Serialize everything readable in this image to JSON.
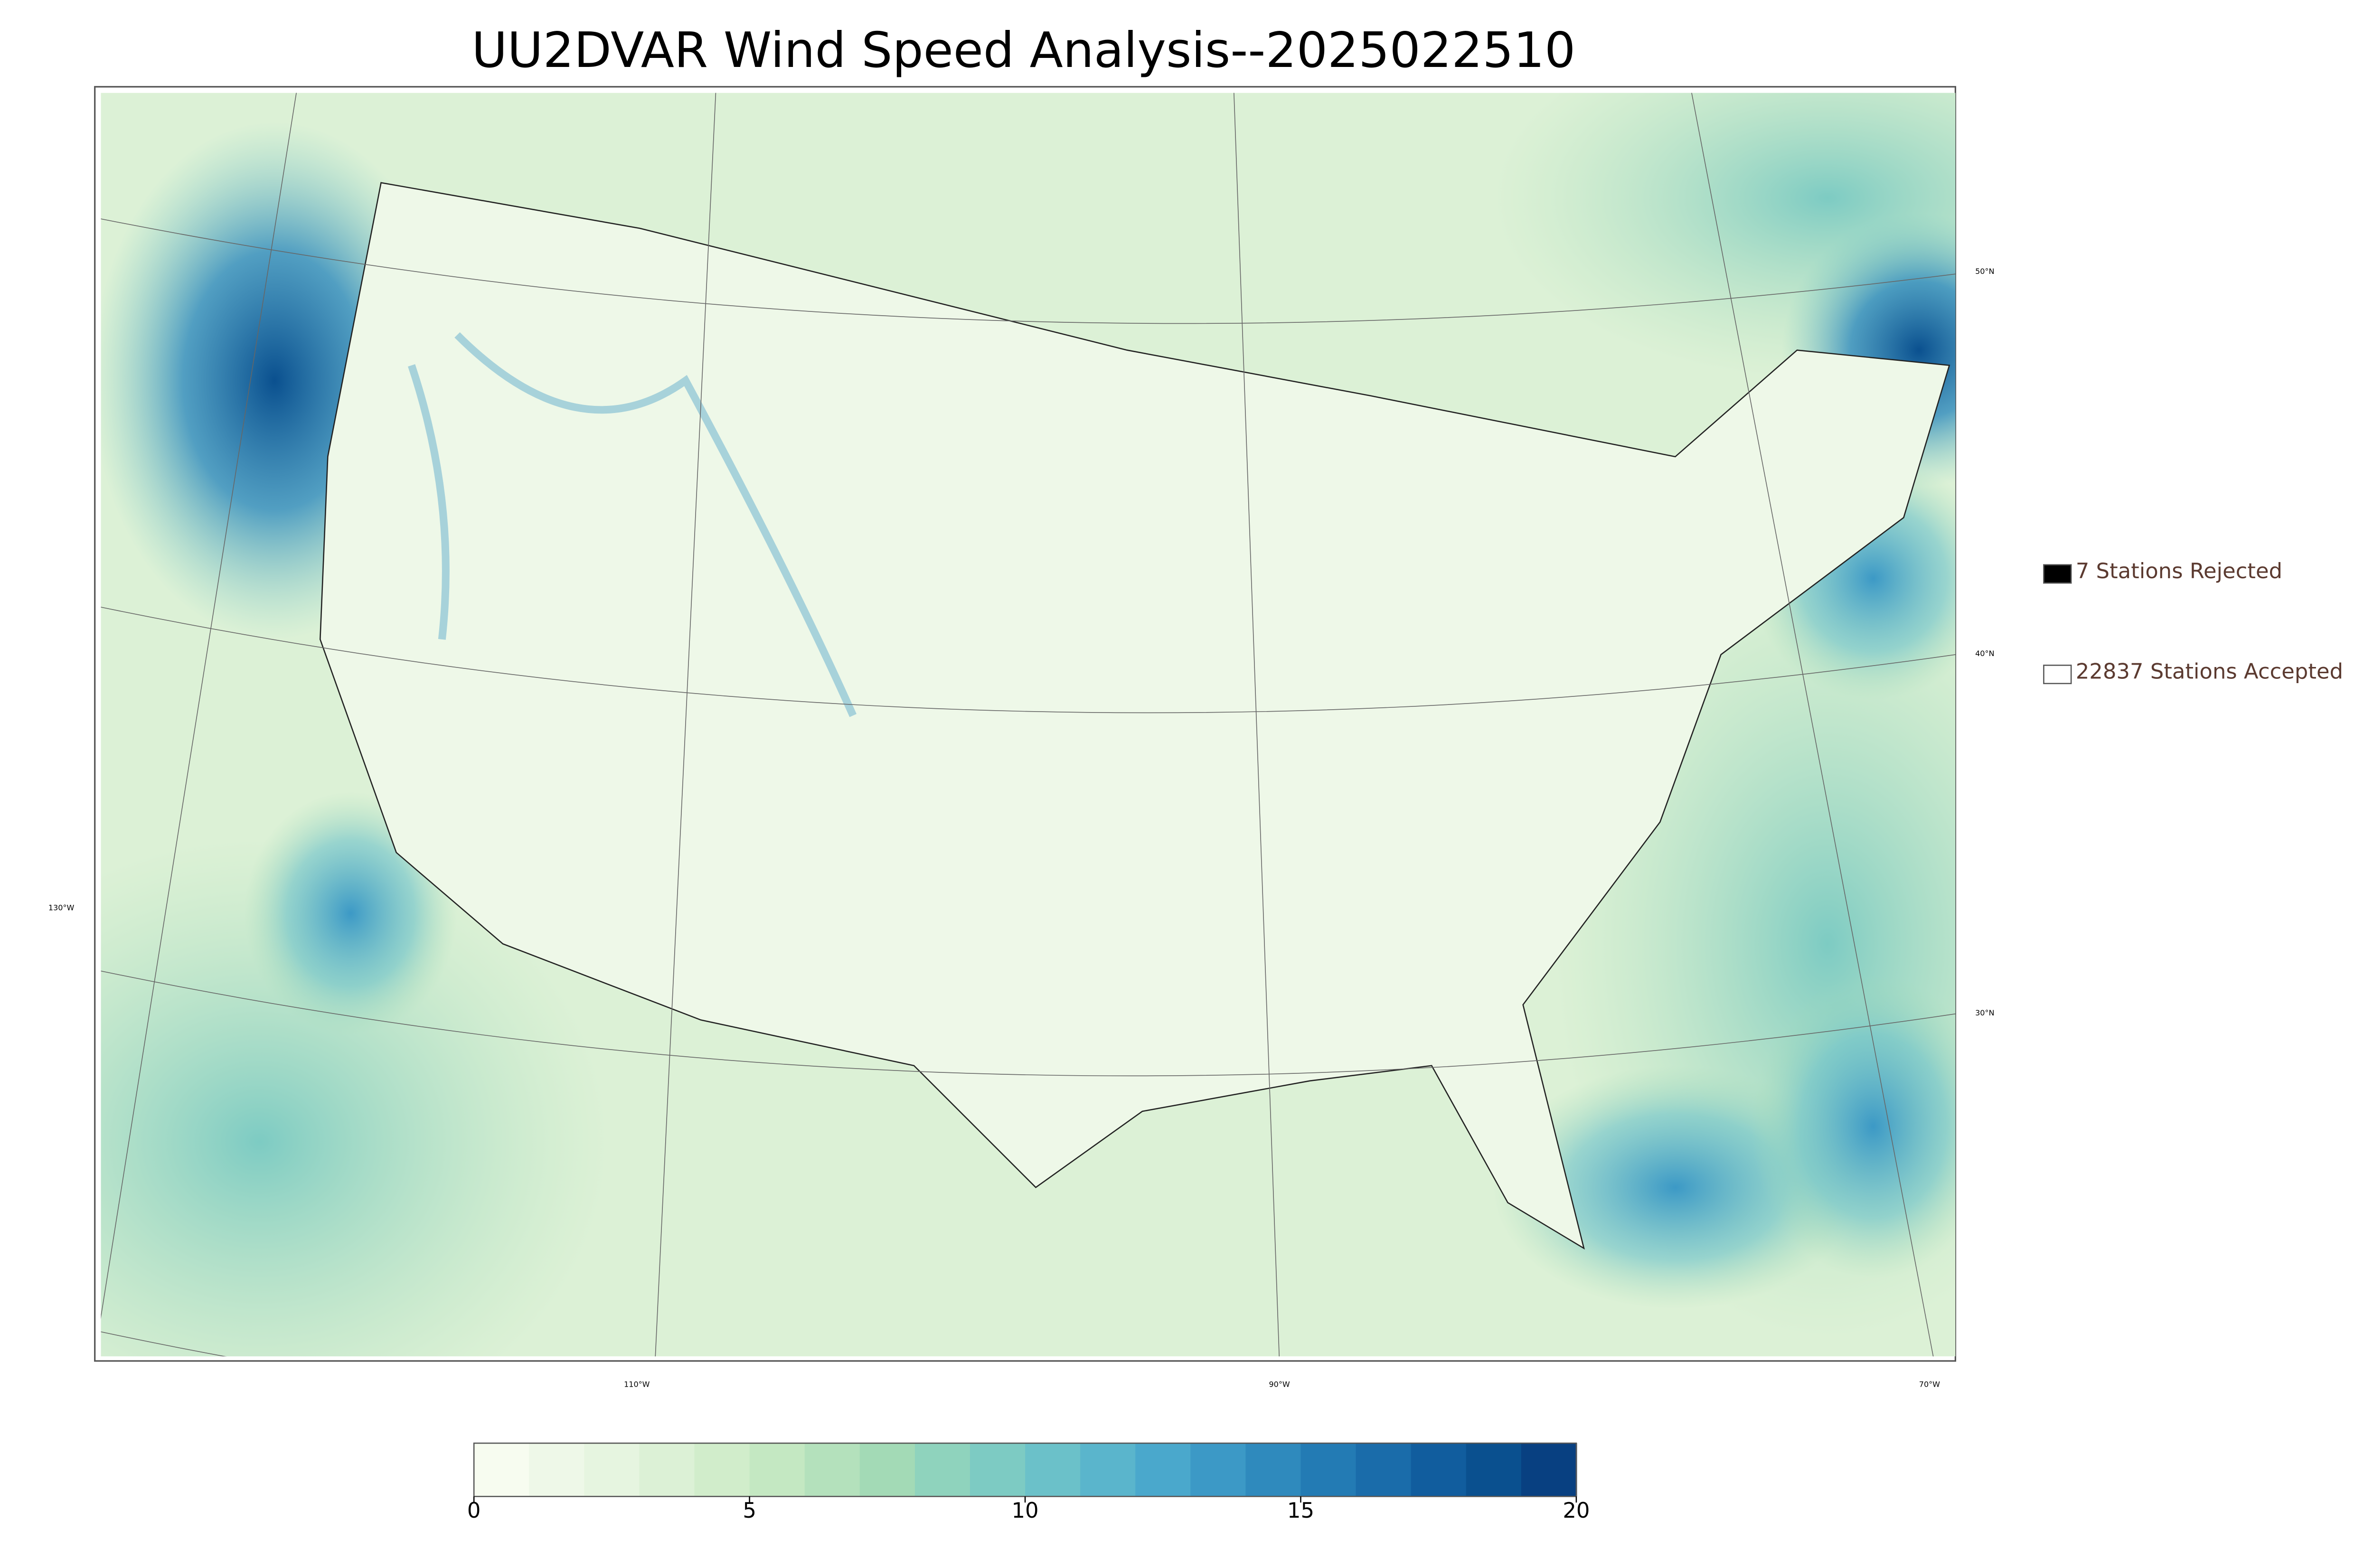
{
  "title": "UU2DVAR Wind Speed Analysis--2025022510",
  "legend": [
    {
      "label": "7 Stations Rejected",
      "marker": "filled"
    },
    {
      "label": "22837 Stations Accepted",
      "marker": "open"
    }
  ],
  "colorbar": {
    "lim": [
      0,
      20
    ],
    "ticks": [
      0,
      5,
      10,
      15,
      20
    ],
    "colors": [
      "#f7fcf0",
      "#eef8e8",
      "#e6f5e0",
      "#dcf1d6",
      "#d1edcb",
      "#c4e8c2",
      "#b4e1bc",
      "#a3dab6",
      "#8fd3bd",
      "#7dcbc3",
      "#6bc1c9",
      "#5ab5cc",
      "#4aa8cc",
      "#3c99c6",
      "#2f8abd",
      "#237bb4",
      "#1a6caa",
      "#115d9e",
      "#0a508f",
      "#084081"
    ]
  },
  "graticule": {
    "lat_labels": [
      "50°N",
      "40°N",
      "30°N"
    ],
    "lon_labels": [
      "130°W",
      "110°W",
      "90°W",
      "70°W"
    ]
  }
}
